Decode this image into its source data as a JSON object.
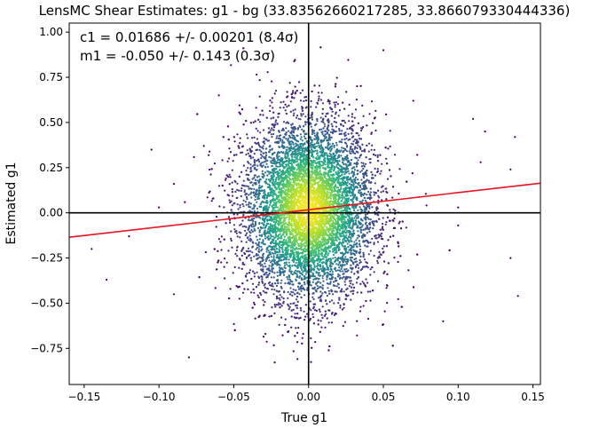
{
  "chart_data": {
    "type": "scatter",
    "title": "LensMC Shear Estimates: g1  - bg (33.83562660217285, 33.866079330444336)",
    "xlabel": "True g1",
    "ylabel": "Estimated g1",
    "xlim": [
      -0.16,
      0.155
    ],
    "ylim": [
      -0.95,
      1.05
    ],
    "xticks": [
      -0.15,
      -0.1,
      -0.05,
      0.0,
      0.05,
      0.1,
      0.15
    ],
    "xtick_labels": [
      "−0.15",
      "−0.10",
      "−0.05",
      "0.00",
      "0.05",
      "0.10",
      "0.15"
    ],
    "yticks": [
      -0.75,
      -0.5,
      -0.25,
      0.0,
      0.25,
      0.5,
      0.75,
      1.0
    ],
    "ytick_labels": [
      "−0.75",
      "−0.50",
      "−0.25",
      "0.00",
      "0.25",
      "0.50",
      "0.75",
      "1.00"
    ],
    "grid": false,
    "annotations": [
      "c1 = 0.01686 +/- 0.00201 (8.4σ)",
      "m1 = -0.050 +/- 0.143 (0.3σ)"
    ],
    "fit_line": {
      "slope": 0.95,
      "intercept": 0.01686,
      "color": "#e8131f"
    },
    "reference_lines": {
      "x": 0.0,
      "y": 0.0,
      "color": "#000000"
    },
    "colormap": "viridis",
    "outlier_points": [
      {
        "x": -0.145,
        "y": -0.2
      },
      {
        "x": -0.135,
        "y": -0.37
      },
      {
        "x": -0.12,
        "y": -0.13
      },
      {
        "x": -0.105,
        "y": 0.35
      },
      {
        "x": -0.1,
        "y": 0.03
      },
      {
        "x": -0.09,
        "y": 0.16
      },
      {
        "x": -0.08,
        "y": -0.8
      },
      {
        "x": -0.07,
        "y": 0.37
      },
      {
        "x": -0.06,
        "y": 0.65
      },
      {
        "x": 0.05,
        "y": 0.9
      },
      {
        "x": 0.07,
        "y": 0.62
      },
      {
        "x": 0.1,
        "y": -0.07
      },
      {
        "x": 0.1,
        "y": 0.03
      },
      {
        "x": 0.11,
        "y": 0.52
      },
      {
        "x": 0.115,
        "y": 0.28
      },
      {
        "x": 0.118,
        "y": 0.45
      },
      {
        "x": 0.135,
        "y": 0.24
      },
      {
        "x": 0.135,
        "y": -0.25
      },
      {
        "x": 0.138,
        "y": 0.42
      },
      {
        "x": 0.14,
        "y": -0.46
      },
      {
        "x": 0.09,
        "y": -0.6
      },
      {
        "x": -0.09,
        "y": -0.45
      }
    ],
    "density": {
      "n_points": 9000,
      "center": [
        0.0,
        0.02
      ],
      "x_spread": 0.022,
      "y_spread": 0.25
    }
  }
}
